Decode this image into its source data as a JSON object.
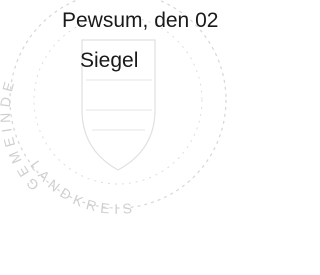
{
  "document": {
    "place_date": "Pewsum, den 02",
    "seal_label": "Siegel",
    "stamp": {
      "top_text": "GEMEINDE",
      "bottom_text": "LANDKREIS"
    }
  }
}
